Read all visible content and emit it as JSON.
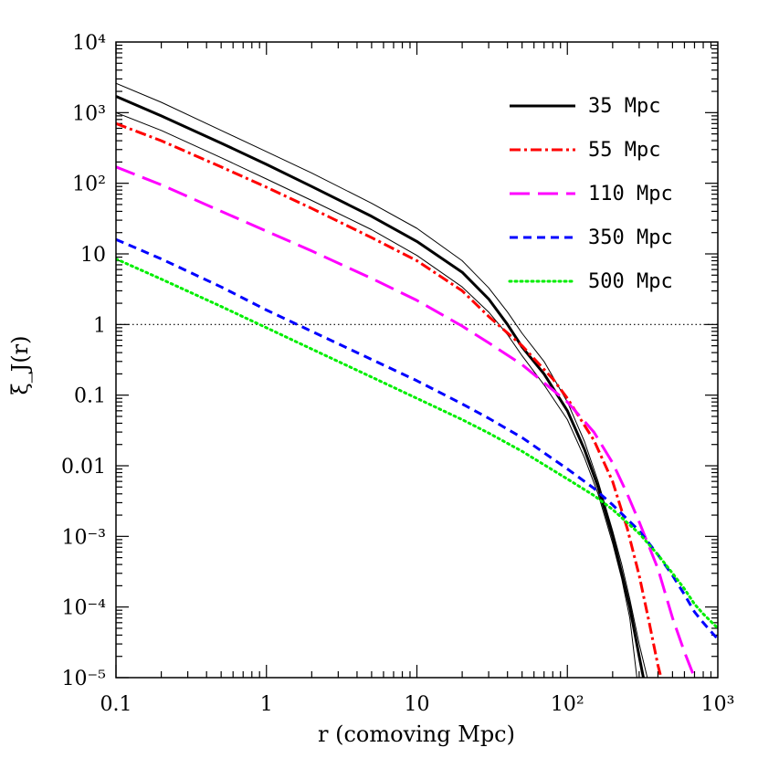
{
  "chart_data": {
    "type": "line",
    "xlabel": "r (comoving Mpc)",
    "ylabel": "ξ_J(r)",
    "xscale": "log",
    "yscale": "log",
    "xlim": [
      0.1,
      1000
    ],
    "ylim": [
      1e-05,
      10000
    ],
    "x_ticks": [
      {
        "value": 0.1,
        "label": "0.1"
      },
      {
        "value": 1,
        "label": "1"
      },
      {
        "value": 10,
        "label": "10"
      },
      {
        "value": 100,
        "label": "10²"
      },
      {
        "value": 1000,
        "label": "10³"
      }
    ],
    "y_ticks": [
      {
        "value": 1e-05,
        "label": "10⁻⁵"
      },
      {
        "value": 0.0001,
        "label": "10⁻⁴"
      },
      {
        "value": 0.001,
        "label": "10⁻³"
      },
      {
        "value": 0.01,
        "label": "0.01"
      },
      {
        "value": 0.1,
        "label": "0.1"
      },
      {
        "value": 1,
        "label": "1"
      },
      {
        "value": 10,
        "label": "10"
      },
      {
        "value": 100,
        "label": "10²"
      },
      {
        "value": 1000,
        "label": "10³"
      },
      {
        "value": 10000,
        "label": "10⁴"
      }
    ],
    "reference_line": {
      "y": 1,
      "style": "dotted",
      "color": "#000000"
    },
    "legend": {
      "placement": "top-right"
    },
    "series": [
      {
        "name": "35 Mpc",
        "color": "#000000",
        "style": "solid",
        "width": 3,
        "x": [
          0.1,
          0.2,
          0.5,
          1,
          2,
          5,
          10,
          20,
          30,
          40,
          50,
          70,
          100,
          130,
          160,
          200,
          230,
          260,
          300,
          320
        ],
        "y": [
          1700,
          900,
          370,
          185,
          90,
          34,
          15,
          5.5,
          2.3,
          1.0,
          0.48,
          0.2,
          0.06,
          0.017,
          0.005,
          0.001,
          0.0003,
          0.0001,
          2e-05,
          1e-05
        ]
      },
      {
        "name": "",
        "color": "#000000",
        "style": "solid",
        "width": 1,
        "x": [
          0.1,
          0.2,
          0.5,
          1,
          2,
          5,
          10,
          20,
          30,
          40,
          50,
          70,
          100,
          130,
          160,
          200,
          230,
          260,
          300,
          340
        ],
        "y": [
          2600,
          1400,
          560,
          280,
          140,
          52,
          23,
          8,
          3.3,
          1.5,
          0.75,
          0.3,
          0.08,
          0.022,
          0.006,
          0.0012,
          0.0004,
          0.00013,
          3e-05,
          1e-05
        ]
      },
      {
        "name": "",
        "color": "#000000",
        "style": "solid",
        "width": 1,
        "x": [
          0.1,
          0.2,
          0.5,
          1,
          2,
          5,
          10,
          20,
          30,
          40,
          50,
          70,
          100,
          130,
          160,
          200,
          230,
          260,
          290
        ],
        "y": [
          1000,
          560,
          230,
          115,
          57,
          22,
          9.5,
          3.4,
          1.5,
          0.72,
          0.36,
          0.14,
          0.045,
          0.013,
          0.004,
          0.0008,
          0.00025,
          7e-05,
          1e-05
        ]
      },
      {
        "name": "55 Mpc",
        "color": "#ff0000",
        "style": "dash-dot",
        "width": 3,
        "x": [
          0.1,
          0.2,
          0.5,
          1,
          2,
          5,
          10,
          20,
          30,
          50,
          80,
          100,
          150,
          200,
          250,
          300,
          350,
          400,
          420
        ],
        "y": [
          700,
          400,
          170,
          88,
          44,
          17,
          8,
          3,
          1.3,
          0.5,
          0.17,
          0.09,
          0.023,
          0.006,
          0.0013,
          0.00028,
          6e-05,
          1.5e-05,
          1e-05
        ]
      },
      {
        "name": "110 Mpc",
        "color": "#ff00ff",
        "style": "long-dash",
        "width": 3,
        "x": [
          0.1,
          0.2,
          0.5,
          1,
          2,
          5,
          10,
          20,
          30,
          50,
          100,
          150,
          200,
          250,
          300,
          400,
          500,
          600,
          700
        ],
        "y": [
          170,
          95,
          40,
          21,
          11,
          4.5,
          2.2,
          0.95,
          0.55,
          0.27,
          0.08,
          0.03,
          0.011,
          0.004,
          0.0016,
          0.00035,
          7e-05,
          2.3e-05,
          1e-05
        ]
      },
      {
        "name": "350 Mpc",
        "color": "#0000ff",
        "style": "short-dash",
        "width": 3,
        "x": [
          0.1,
          0.2,
          0.5,
          1,
          2,
          5,
          10,
          20,
          30,
          50,
          100,
          150,
          200,
          300,
          400,
          500,
          600,
          700,
          800,
          1000
        ],
        "y": [
          16,
          8.5,
          3.4,
          1.6,
          0.8,
          0.32,
          0.16,
          0.075,
          0.047,
          0.025,
          0.009,
          0.0048,
          0.0028,
          0.0012,
          0.00055,
          0.00028,
          0.00015,
          8.5e-05,
          6e-05,
          3.5e-05
        ]
      },
      {
        "name": "500 Mpc",
        "color": "#00ee00",
        "style": "dotted",
        "width": 3,
        "x": [
          0.1,
          0.2,
          0.5,
          1,
          2,
          5,
          10,
          20,
          30,
          50,
          100,
          150,
          200,
          300,
          400,
          500,
          600,
          700,
          800,
          1000
        ],
        "y": [
          8.5,
          4.4,
          1.8,
          0.9,
          0.45,
          0.18,
          0.09,
          0.045,
          0.029,
          0.016,
          0.0065,
          0.0038,
          0.0024,
          0.0011,
          0.00055,
          0.0003,
          0.00018,
          0.00011,
          8e-05,
          5e-05
        ]
      }
    ]
  }
}
